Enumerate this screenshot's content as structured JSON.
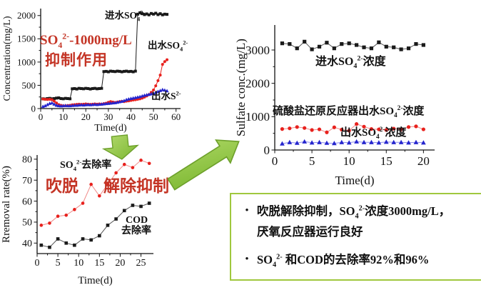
{
  "colors": {
    "series_black": "#1a1a1a",
    "series_red": "#e8211d",
    "series_blue": "#2525cd",
    "annotation_red": "#c43425",
    "arrow_green_fill": "#8dc63f",
    "arrow_green_edge": "#6da02b",
    "box_border_green": "#a0c83e"
  },
  "chart_data": [
    {
      "type": "line",
      "xlabel": "Time(d)",
      "ylabel": "Concentration(mg/L)",
      "xlim": [
        0,
        62
      ],
      "ylim": [
        0,
        2150
      ],
      "x_ticks": [
        0,
        10,
        20,
        30,
        40,
        50,
        60
      ],
      "y_ticks": [
        0,
        500,
        1000,
        1500,
        2000
      ],
      "grid": false,
      "series": [
        {
          "name": "进水SO4 2-",
          "color": "#1a1a1a",
          "marker": "square",
          "values": [
            210,
            205,
            215,
            220,
            210,
            215,
            225,
            230,
            215,
            210,
            220,
            215,
            210,
            425,
            430,
            420,
            435,
            430,
            425,
            435,
            430,
            420,
            430,
            435,
            425,
            430,
            435,
            795,
            800,
            790,
            805,
            800,
            795,
            805,
            800,
            790,
            800,
            805,
            795,
            800,
            790,
            805,
            2030,
            2060,
            2040,
            2020,
            2035,
            2015,
            2045,
            2030,
            2050,
            2020,
            2040,
            2015,
            2030,
            2025
          ]
        },
        {
          "name": "出水SO4 2-",
          "color": "#e8211d",
          "marker": "circle",
          "values": [
            205,
            200,
            195,
            200,
            190,
            160,
            120,
            85,
            70,
            60,
            60,
            65,
            70,
            80,
            85,
            90,
            95,
            90,
            95,
            100,
            95,
            90,
            95,
            100,
            95,
            100,
            95,
            105,
            115,
            135,
            150,
            140,
            130,
            140,
            150,
            155,
            150,
            160,
            165,
            175,
            185,
            190,
            200,
            210,
            225,
            245,
            270,
            300,
            350,
            400,
            490,
            600,
            720,
            950,
            1010,
            1050
          ]
        },
        {
          "name": "出水S 2-",
          "color": "#2525cd",
          "marker": "triangle",
          "values": [
            45,
            60,
            85,
            110,
            120,
            95,
            70,
            60,
            55,
            60,
            65,
            60,
            60,
            65,
            70,
            70,
            75,
            80,
            75,
            80,
            85,
            80,
            85,
            90,
            85,
            90,
            95,
            100,
            105,
            110,
            115,
            120,
            125,
            135,
            145,
            155,
            170,
            190,
            205,
            215,
            225,
            235,
            245,
            255,
            270,
            285,
            295,
            305,
            315,
            325,
            345,
            365,
            385,
            405,
            395,
            380
          ]
        }
      ]
    },
    {
      "type": "line",
      "xlabel": "Time(d)",
      "ylabel": "Rremoval rate(%)",
      "xlim": [
        0,
        28
      ],
      "ylim": [
        35,
        82
      ],
      "x_ticks": [
        0,
        5,
        10,
        15,
        20,
        25
      ],
      "y_ticks": [
        40,
        50,
        60,
        70,
        80
      ],
      "grid": false,
      "series": [
        {
          "name": "SO4 2-去除率",
          "color": "#e8211d",
          "line_color": "#f08a88",
          "marker": "circle",
          "x": [
            1,
            3,
            5,
            7,
            9,
            11,
            13,
            15,
            17,
            19,
            21,
            23,
            25,
            27
          ],
          "values": [
            48.5,
            49.5,
            52.8,
            53.3,
            56,
            59,
            68,
            62.5,
            68,
            73.5,
            77.5,
            76,
            79.5,
            78
          ]
        },
        {
          "name": "COD去除率",
          "color": "#1a1a1a",
          "line_color": "#555555",
          "marker": "square",
          "x": [
            1,
            3,
            5,
            7,
            9,
            11,
            13,
            15,
            17,
            19,
            21,
            23,
            25,
            27
          ],
          "values": [
            39,
            38,
            42,
            40,
            39,
            42,
            41.5,
            43.5,
            48.5,
            51.5,
            55.5,
            58,
            57.5,
            59
          ]
        }
      ]
    },
    {
      "type": "line",
      "xlabel": "Time(d)",
      "ylabel": "Sulfate conc.(mg/L)",
      "xlim": [
        0,
        21.5
      ],
      "ylim": [
        0,
        3750
      ],
      "x_ticks": [
        0,
        5,
        10,
        15,
        20
      ],
      "y_ticks": [
        0,
        1000,
        2000,
        3000
      ],
      "grid": false,
      "series": [
        {
          "name": "进水SO4 2-浓度",
          "color": "#1a1a1a",
          "line_color": "#555555",
          "marker": "square",
          "values": [
            3200,
            3180,
            3050,
            3250,
            3020,
            3100,
            3220,
            3050,
            3180,
            3200,
            3150,
            3080,
            3050,
            3230,
            3100,
            3080,
            3020,
            3050,
            3180,
            3150
          ]
        },
        {
          "name": "硫酸盐还原反应器出水SO4 2-浓度",
          "color": "#e8211d",
          "line_color": "#f08a88",
          "marker": "circle",
          "values": [
            630,
            650,
            690,
            660,
            600,
            620,
            530,
            680,
            610,
            580,
            780,
            700,
            630,
            620,
            600,
            640,
            620,
            690,
            710,
            620
          ]
        },
        {
          "name": "出水SO4 2-浓度",
          "color": "#2525cd",
          "line_color": "#8a8af0",
          "marker": "triangle",
          "values": [
            190,
            230,
            210,
            250,
            220,
            230,
            210,
            200,
            230,
            220,
            250,
            230,
            230,
            220,
            240,
            230,
            230,
            220,
            230,
            220
          ]
        }
      ]
    }
  ],
  "labels": {
    "a_influent": {
      "pre": "进水SO",
      "sub": "4",
      "sup": "2-"
    },
    "a_effl_so4": {
      "pre": "出水SO",
      "sub": "4",
      "sup": "2-"
    },
    "a_effl_s2": {
      "pre": "出水S",
      "sup": "2-"
    },
    "a_note1": {
      "pre": "SO",
      "sub": "4",
      "sup": "2-",
      "post": "-1000mg/L"
    },
    "a_note2": "抑制作用",
    "b_so4_label": {
      "pre": "SO",
      "sub": "4",
      "sup": "2-",
      "post": "去除率"
    },
    "b_note1": "吹脱",
    "b_note2": "解除抑制",
    "b_cod_line1": "COD",
    "b_cod_line2": "去除率",
    "c_influent": {
      "pre": "进水SO",
      "sub": "4",
      "sup": "2-",
      "post": "浓度"
    },
    "c_reactor": {
      "pre": "硫酸盐还原反应器出水SO",
      "sub": "4",
      "sup": "2-",
      "post": "浓度"
    },
    "c_effluent": {
      "pre": "出水SO",
      "sub": "4",
      "sup": "2-",
      "post": "浓度"
    }
  },
  "textbox": {
    "bullet_glyph": "•",
    "bullet1": {
      "pre": "吹脱解除抑制，SO",
      "sub": "4",
      "sup": "2-",
      "post": "浓度3000mg/L，",
      "line2": "厌氧反应器运行良好"
    },
    "bullet2": {
      "pre": "SO",
      "sub": "4",
      "sup": "2-",
      "post": " 和COD的去除率92%和96%"
    }
  }
}
